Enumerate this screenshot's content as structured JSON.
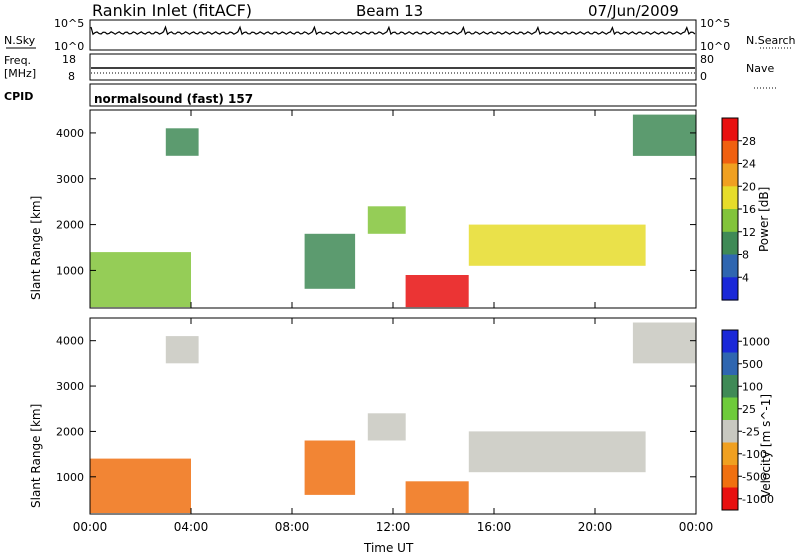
{
  "header": {
    "station": "Rankin Inlet (fitACF)",
    "beam": "Beam 13",
    "date": "07/Jun/2009"
  },
  "top_panels": {
    "nsky_label": "N.Sky",
    "nsky_ticks": [
      "10^5",
      "10^0"
    ],
    "nsearch_label": "N.Search",
    "freq_label": "Freq.",
    "freq_unit": "[MHz]",
    "freq_ticks": [
      "18",
      "8"
    ],
    "nave_label": "Nave",
    "nave_ticks": [
      "80",
      "0"
    ],
    "cpid_label": "CPID",
    "cpid_value": "normalsound (fast) 157"
  },
  "colors": {
    "power": [
      "#1a28d8",
      "#2f66b0",
      "#3f8a56",
      "#82c43a",
      "#e6dc2a",
      "#f0a020",
      "#f06010",
      "#e81010"
    ],
    "velocity": [
      "#1a28d8",
      "#2f66b0",
      "#3f8a56",
      "#6ecb3a",
      "#c8c8c0",
      "#f0a020",
      "#f07010",
      "#e81010"
    ]
  },
  "chart_data": [
    {
      "type": "heatmap",
      "title": "Power",
      "ylabel": "Slant Range [km]",
      "xlabel": "Time UT",
      "ylim": [
        180,
        4500
      ],
      "yticks": [
        "1000",
        "2000",
        "3000",
        "4000"
      ],
      "xticks": [
        "00:00",
        "04:00",
        "08:00",
        "12:00",
        "16:00",
        "20:00",
        "00:00"
      ],
      "colorbar_label": "Power [dB]",
      "colorbar_ticks": [
        "4",
        "8",
        "12",
        "16",
        "20",
        "24",
        "28"
      ],
      "regions": [
        {
          "t": [
            0.0,
            4.0
          ],
          "r": [
            200,
            1400
          ],
          "value": 14
        },
        {
          "t": [
            3.0,
            4.3
          ],
          "r": [
            3500,
            4100
          ],
          "value": 8
        },
        {
          "t": [
            8.5,
            10.5
          ],
          "r": [
            600,
            1800
          ],
          "value": 10
        },
        {
          "t": [
            11.0,
            12.5
          ],
          "r": [
            1800,
            2400
          ],
          "value": 12
        },
        {
          "t": [
            12.5,
            15.0
          ],
          "r": [
            200,
            900
          ],
          "value": 30
        },
        {
          "t": [
            15.0,
            22.0
          ],
          "r": [
            1100,
            2000
          ],
          "value": 16
        },
        {
          "t": [
            21.5,
            24.0
          ],
          "r": [
            3500,
            4400
          ],
          "value": 8
        }
      ]
    },
    {
      "type": "heatmap",
      "title": "Velocity",
      "ylabel": "Slant Range [km]",
      "xlabel": "Time UT",
      "ylim": [
        180,
        4500
      ],
      "yticks": [
        "1000",
        "2000",
        "3000",
        "4000"
      ],
      "xticks": [
        "00:00",
        "04:00",
        "08:00",
        "12:00",
        "16:00",
        "20:00",
        "00:00"
      ],
      "colorbar_label": "Velocity [m s^-1]",
      "colorbar_ticks": [
        "1000",
        "500",
        "100",
        "25",
        "-25",
        "-100",
        "-500",
        "-1000"
      ],
      "regions": [
        {
          "t": [
            0.0,
            4.0
          ],
          "r": [
            200,
            1400
          ],
          "value": -150
        },
        {
          "t": [
            3.0,
            4.3
          ],
          "r": [
            3500,
            4100
          ],
          "value": 0
        },
        {
          "t": [
            8.5,
            10.5
          ],
          "r": [
            600,
            1800
          ],
          "value": -200
        },
        {
          "t": [
            11.0,
            12.5
          ],
          "r": [
            1800,
            2400
          ],
          "value": 0
        },
        {
          "t": [
            12.5,
            15.0
          ],
          "r": [
            200,
            900
          ],
          "value": -300
        },
        {
          "t": [
            15.0,
            22.0
          ],
          "r": [
            1100,
            2000
          ],
          "value": 0
        },
        {
          "t": [
            21.5,
            24.0
          ],
          "r": [
            3500,
            4400
          ],
          "value": 0
        }
      ]
    }
  ]
}
